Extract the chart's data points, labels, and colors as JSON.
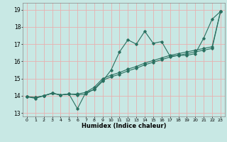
{
  "title": "",
  "xlabel": "Humidex (Indice chaleur)",
  "ylabel": "",
  "xlim": [
    -0.5,
    23.5
  ],
  "ylim": [
    12.8,
    19.4
  ],
  "yticks": [
    13,
    14,
    15,
    16,
    17,
    18,
    19
  ],
  "xticks": [
    0,
    1,
    2,
    3,
    4,
    5,
    6,
    7,
    8,
    9,
    10,
    11,
    12,
    13,
    14,
    15,
    16,
    17,
    18,
    19,
    20,
    21,
    22,
    23
  ],
  "bg_color": "#c8e8e4",
  "grid_color": "#e8b0b0",
  "line_color": "#2a7060",
  "line1_x": [
    0,
    1,
    2,
    3,
    4,
    5,
    6,
    7,
    8,
    9,
    10,
    11,
    12,
    13,
    14,
    15,
    16,
    17,
    18,
    19,
    20,
    21,
    22,
    23
  ],
  "line1_y": [
    13.95,
    13.85,
    14.0,
    14.15,
    14.05,
    14.1,
    13.25,
    14.2,
    14.35,
    14.85,
    15.5,
    16.55,
    17.25,
    17.0,
    17.75,
    17.05,
    17.15,
    16.3,
    16.35,
    16.35,
    16.45,
    17.35,
    18.45,
    18.9
  ],
  "line2_x": [
    0,
    1,
    2,
    3,
    4,
    5,
    6,
    7,
    8,
    9,
    10,
    11,
    12,
    13,
    14,
    15,
    16,
    17,
    18,
    19,
    20,
    21,
    22,
    23
  ],
  "line2_y": [
    13.95,
    13.9,
    14.0,
    14.15,
    14.05,
    14.1,
    14.05,
    14.1,
    14.4,
    14.9,
    15.1,
    15.25,
    15.45,
    15.6,
    15.8,
    15.95,
    16.1,
    16.25,
    16.35,
    16.45,
    16.55,
    16.65,
    16.75,
    18.9
  ],
  "line3_x": [
    0,
    1,
    2,
    3,
    4,
    5,
    6,
    7,
    8,
    9,
    10,
    11,
    12,
    13,
    14,
    15,
    16,
    17,
    18,
    19,
    20,
    21,
    22,
    23
  ],
  "line3_y": [
    13.95,
    13.9,
    14.0,
    14.15,
    14.05,
    14.1,
    14.1,
    14.2,
    14.5,
    15.0,
    15.2,
    15.35,
    15.55,
    15.7,
    15.9,
    16.05,
    16.2,
    16.35,
    16.45,
    16.55,
    16.65,
    16.75,
    16.85,
    18.9
  ]
}
